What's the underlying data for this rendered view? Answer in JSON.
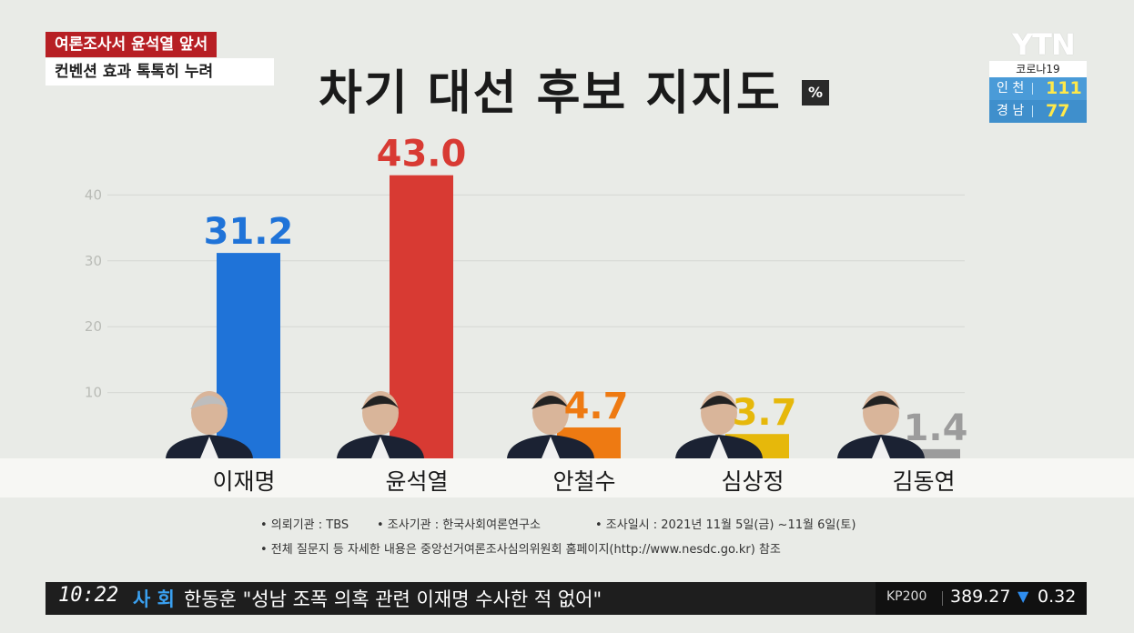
{
  "headline": {
    "top": "여론조사서 윤석열 앞서",
    "sub": "컨벤션 효과 톡톡히 누려"
  },
  "logo": "YTN",
  "corona": {
    "title": "코로나19",
    "rows": [
      {
        "region": "인 천",
        "count": "111"
      },
      {
        "region": "경 남",
        "count": "77"
      }
    ]
  },
  "chart_data": {
    "type": "bar",
    "title": "차기 대선 후보 지지도",
    "unit": "%",
    "categories": [
      "이재명",
      "윤석열",
      "안철수",
      "심상정",
      "김동연"
    ],
    "values": [
      31.2,
      43.0,
      4.7,
      3.7,
      1.4
    ],
    "value_labels": [
      "31.2",
      "43.0",
      "4.7",
      "3.7",
      "1.4"
    ],
    "colors": [
      "#1f73d8",
      "#d83a33",
      "#ee7a12",
      "#e6b80b",
      "#9c9c9c"
    ],
    "yticks": [
      "10",
      "20",
      "30",
      "40"
    ],
    "ylim": [
      0,
      40
    ],
    "grid": true
  },
  "footnotes": {
    "line1": [
      "• 의뢰기관 : TBS",
      "• 조사기관 : 한국사회여론연구소",
      "• 조사일시 : 2021년 11월 5일(금) ~11월 6일(토)"
    ],
    "line2": "• 전체 질문지 등 자세한 내용은 중앙선거여론조사심의위원회 홈페이지(http://www.nesdc.go.kr) 참조"
  },
  "ticker": {
    "time": "10:22",
    "category": "사 회",
    "news": "한동훈 \"성남 조폭 의혹 관련 이재명 수사한 적 없어\"",
    "index_name": "KP200",
    "index_value": "389.27",
    "arrow": "▼",
    "change": "0.32"
  }
}
